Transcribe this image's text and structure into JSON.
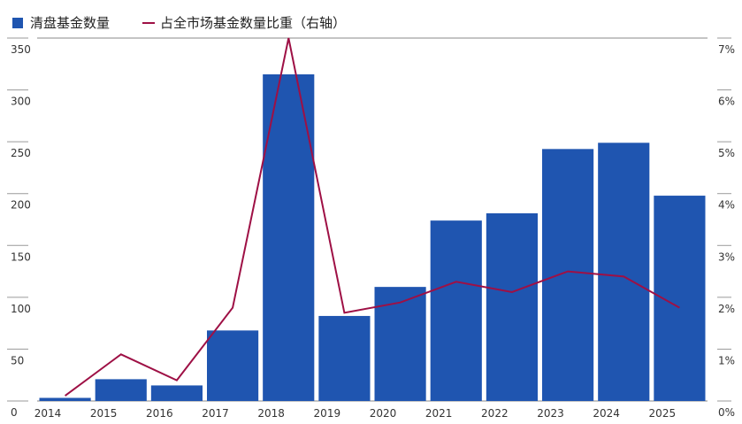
{
  "chart_data": {
    "type": "bar",
    "categories": [
      "2014",
      "2015",
      "2016",
      "2017",
      "2018",
      "2019",
      "2020",
      "2021",
      "2022",
      "2023",
      "2024",
      "2025"
    ],
    "series": [
      {
        "name": "清盘基金数量",
        "type": "bar",
        "axis": "left",
        "color": "#1f55b0",
        "values": [
          3,
          21,
          15,
          68,
          315,
          82,
          110,
          174,
          181,
          243,
          249,
          198
        ]
      },
      {
        "name": "占全市场基金数量比重（右轴）",
        "type": "line",
        "axis": "right",
        "color": "#9e1045",
        "values": [
          0.1,
          0.9,
          0.4,
          1.8,
          7.0,
          1.7,
          1.9,
          2.3,
          2.1,
          2.5,
          2.4,
          1.8
        ]
      }
    ],
    "y_left": {
      "range": [
        0,
        350
      ],
      "ticks": [
        "0",
        "50",
        "100",
        "150",
        "200",
        "250",
        "300",
        "350"
      ]
    },
    "y_right": {
      "range": [
        0,
        7
      ],
      "ticks": [
        "0%",
        "1%",
        "2%",
        "3%",
        "4%",
        "5%",
        "6%",
        "7%"
      ]
    },
    "grid": false,
    "legend": "top-left"
  }
}
